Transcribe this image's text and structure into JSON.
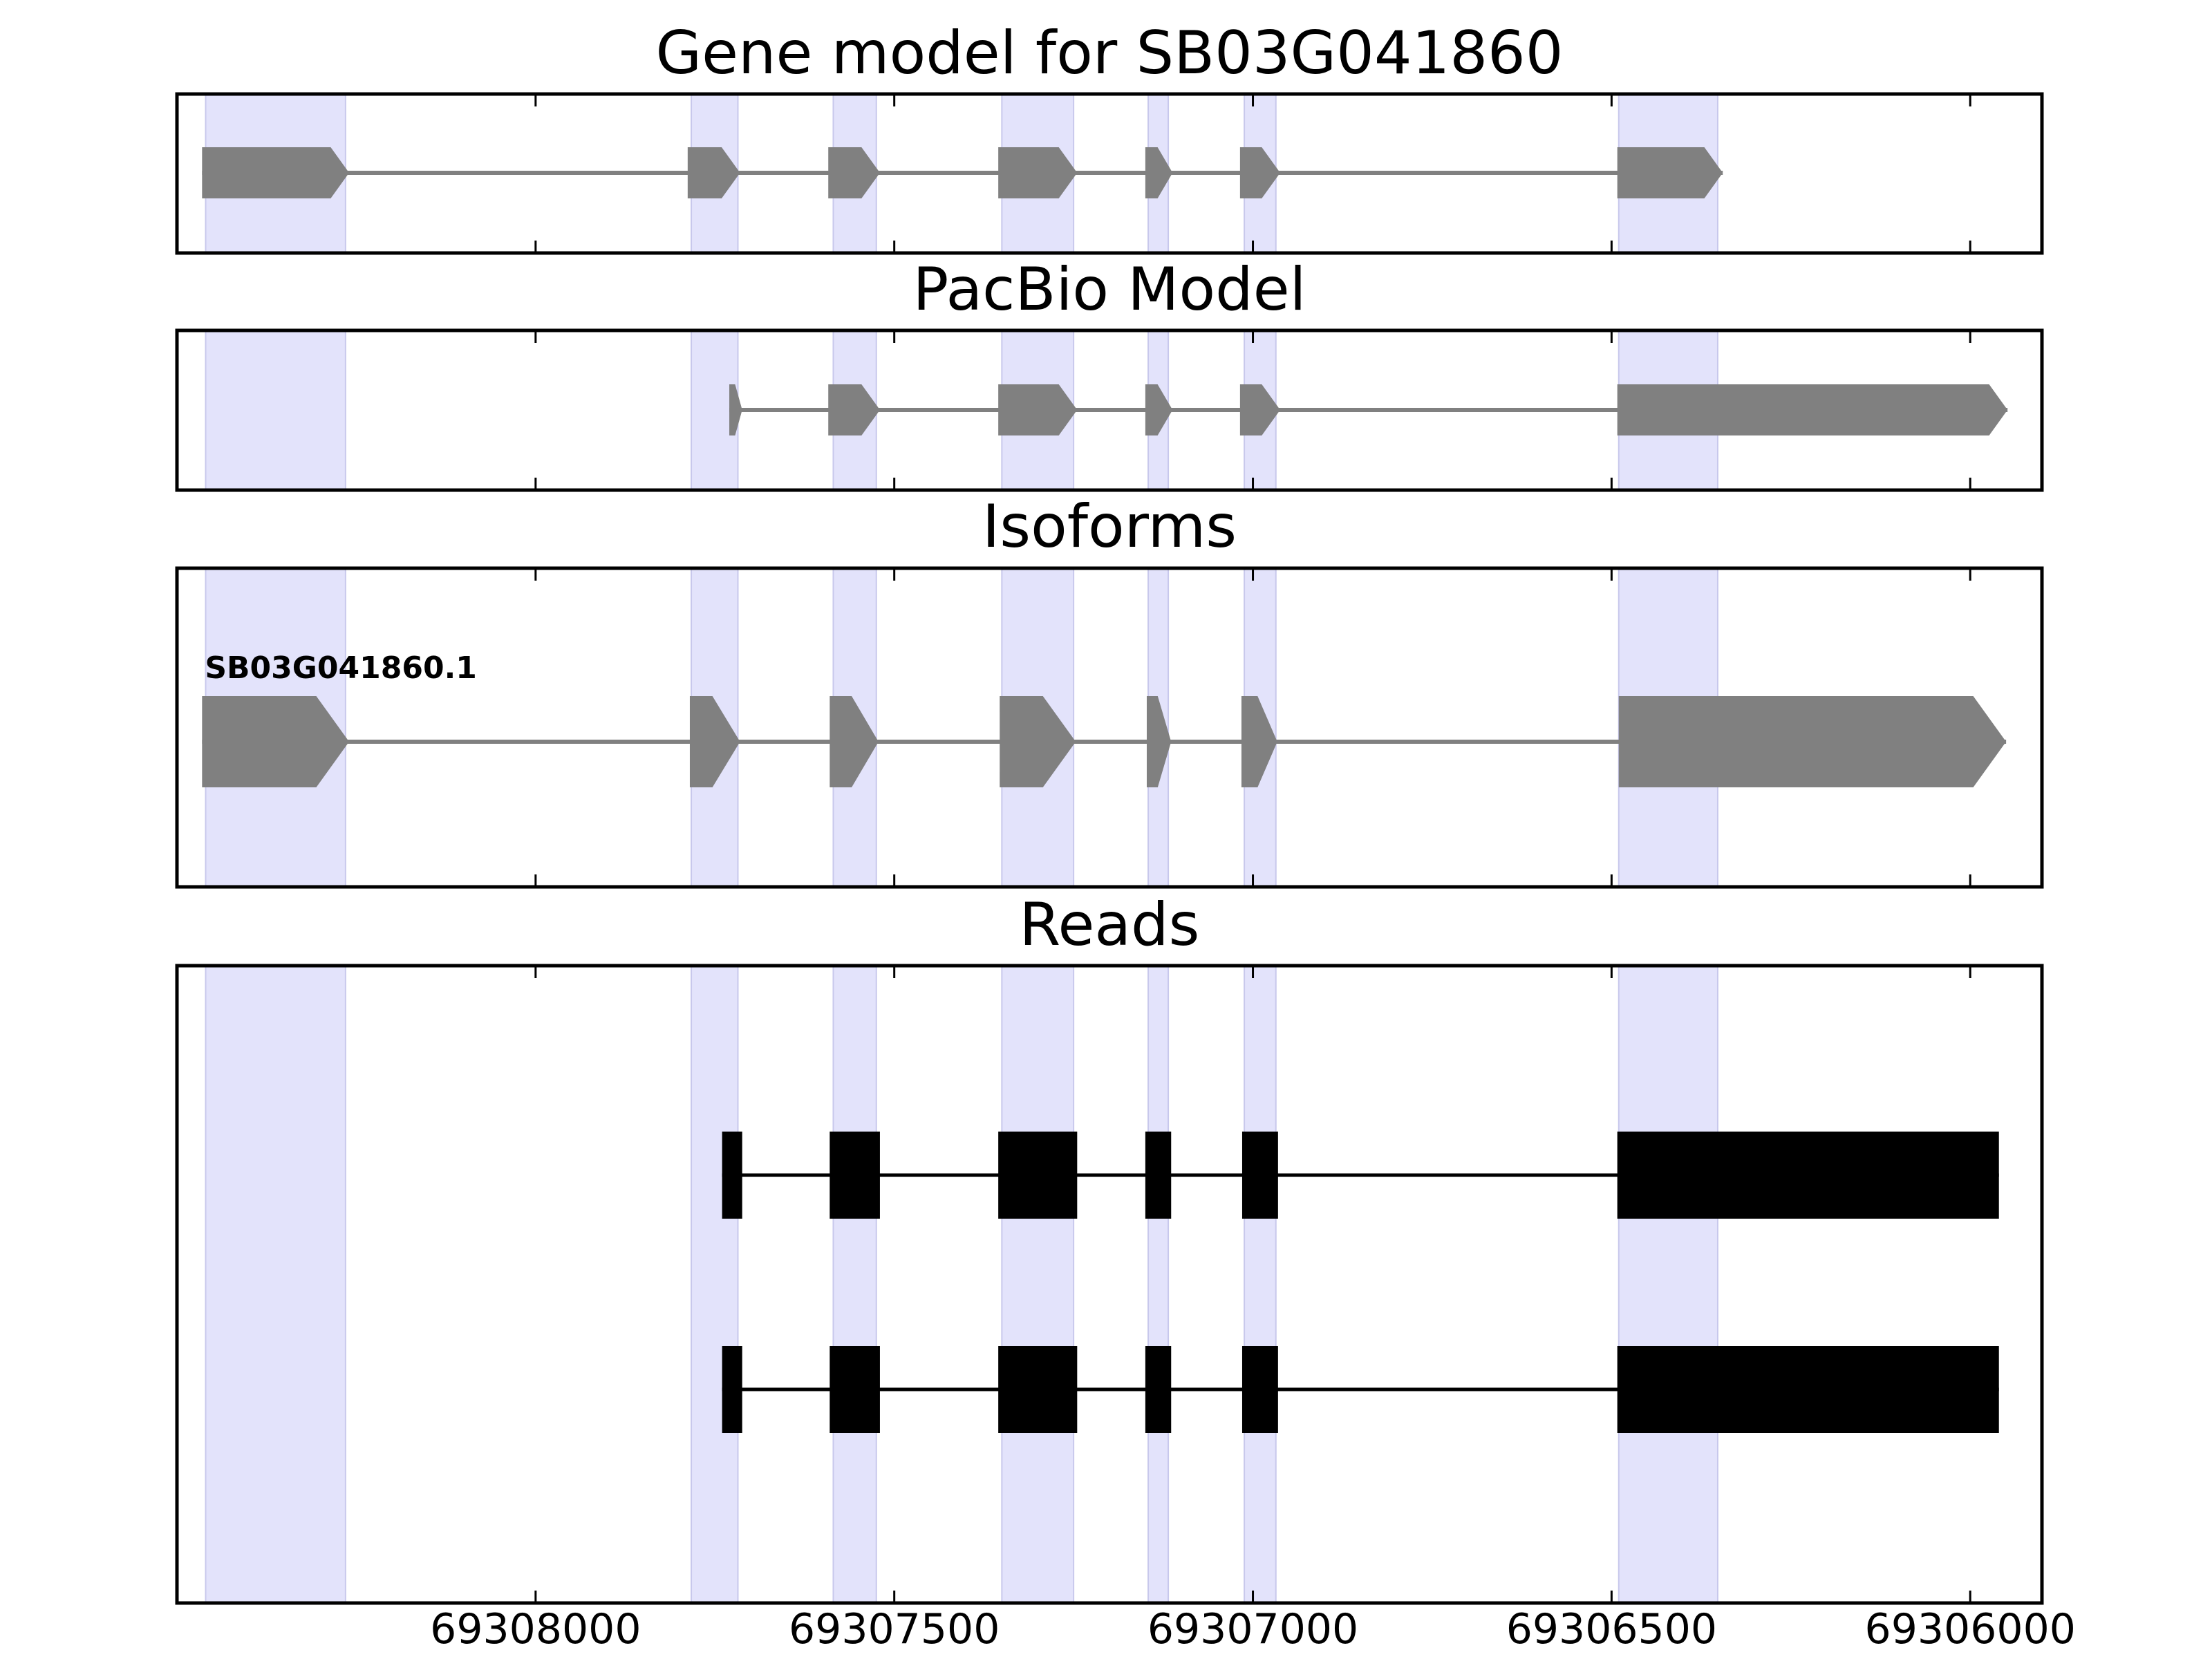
{
  "chart_data": {
    "type": "gene-model-tracks",
    "xaxis": {
      "range": [
        69308500,
        69305900
      ],
      "reversed": true,
      "ticks": [
        69308000,
        69307500,
        69307000,
        69306500,
        69306000
      ],
      "tick_labels": [
        "69308000",
        "69307500",
        "69307000",
        "69306500",
        "69306000"
      ]
    },
    "exon_highlights": [
      [
        69308460,
        69308265
      ],
      [
        69307783,
        69307718
      ],
      [
        69307585,
        69307525
      ],
      [
        69307350,
        69307250
      ],
      [
        69307146,
        69307118
      ],
      [
        69307012,
        69306968
      ],
      [
        69306490,
        69306352
      ]
    ],
    "panels": [
      {
        "title": "Gene model for SB03G041860",
        "features": [
          {
            "name": "",
            "strand": "-",
            "exons": [
              [
                69308465,
                69308260
              ],
              [
                69307788,
                69307715
              ],
              [
                69307592,
                69307520
              ],
              [
                69307355,
                69307245
              ],
              [
                69307150,
                69307112
              ],
              [
                69307018,
                69306962
              ],
              [
                69306492,
                69306345
              ]
            ]
          }
        ]
      },
      {
        "title": "PacBio Model",
        "features": [
          {
            "name": "",
            "strand": "-",
            "exons": [
              [
                69307730,
                69307712
              ],
              [
                69307592,
                69307520
              ],
              [
                69307355,
                69307245
              ],
              [
                69307150,
                69307112
              ],
              [
                69307018,
                69306962
              ],
              [
                69306492,
                69305948
              ]
            ]
          }
        ]
      },
      {
        "title": "Isoforms",
        "features": [
          {
            "name": "SB03G041860.1",
            "strand": "-",
            "exons": [
              [
                69308465,
                69308260
              ],
              [
                69307785,
                69307715
              ],
              [
                69307590,
                69307522
              ],
              [
                69307353,
                69307247
              ],
              [
                69307148,
                69307114
              ],
              [
                69307016,
                69306966
              ],
              [
                69306490,
                69305950
              ]
            ]
          }
        ]
      },
      {
        "title": "Reads",
        "features": [
          {
            "name": "",
            "strand": "",
            "exons": [
              [
                69307740,
                69307712
              ],
              [
                69307590,
                69307520
              ],
              [
                69307355,
                69307245
              ],
              [
                69307150,
                69307114
              ],
              [
                69307015,
                69306965
              ],
              [
                69306492,
                69305960
              ]
            ]
          },
          {
            "name": "",
            "strand": "",
            "exons": [
              [
                69307740,
                69307712
              ],
              [
                69307590,
                69307520
              ],
              [
                69307355,
                69307245
              ],
              [
                69307150,
                69307114
              ],
              [
                69307015,
                69306965
              ],
              [
                69306492,
                69305960
              ]
            ]
          }
        ]
      }
    ],
    "colors": {
      "highlight": "#e3e3fb",
      "highlight_edge": "#c8c8ec",
      "model": "#808080",
      "read": "#000000",
      "axes": "#000000"
    }
  }
}
